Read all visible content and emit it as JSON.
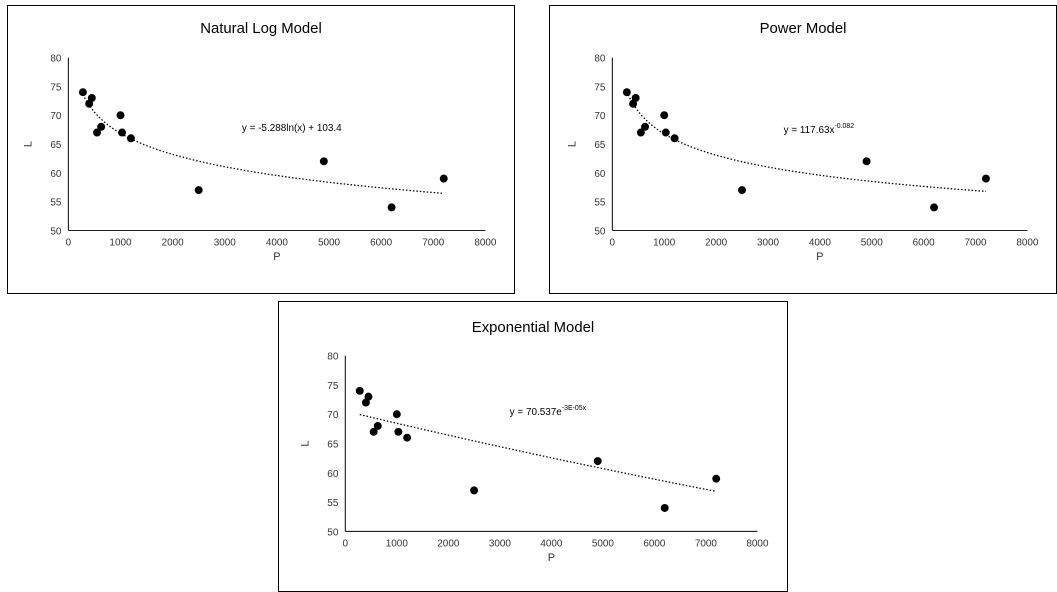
{
  "chart_data": [
    {
      "type": "scatter",
      "title": "Natural Log Model",
      "xlabel": "P",
      "ylabel": "L",
      "xlim": [
        0,
        8000
      ],
      "ylim": [
        50,
        80
      ],
      "xticks": [
        0,
        1000,
        2000,
        3000,
        4000,
        5000,
        6000,
        7000,
        8000
      ],
      "yticks": [
        50,
        55,
        60,
        65,
        70,
        75,
        80
      ],
      "grid": false,
      "points": {
        "x": [
          280,
          400,
          450,
          550,
          630,
          1000,
          1030,
          1200,
          2500,
          4900,
          6200,
          7200
        ],
        "y": [
          74,
          72,
          73,
          67,
          68,
          70,
          67,
          66,
          57,
          62,
          54,
          59
        ]
      },
      "trendline": {
        "kind": "log",
        "a": -5.288,
        "b": 103.4,
        "equation": {
          "text": "y = -5.288ln(x) + 103.4",
          "sup": ""
        }
      }
    },
    {
      "type": "scatter",
      "title": "Power Model",
      "xlabel": "P",
      "ylabel": "L",
      "xlim": [
        0,
        8000
      ],
      "ylim": [
        50,
        80
      ],
      "xticks": [
        0,
        1000,
        2000,
        3000,
        4000,
        5000,
        6000,
        7000,
        8000
      ],
      "yticks": [
        50,
        55,
        60,
        65,
        70,
        75,
        80
      ],
      "grid": false,
      "points": {
        "x": [
          280,
          400,
          450,
          550,
          630,
          1000,
          1030,
          1200,
          2500,
          4900,
          6200,
          7200
        ],
        "y": [
          74,
          72,
          73,
          67,
          68,
          70,
          67,
          66,
          57,
          62,
          54,
          59
        ]
      },
      "trendline": {
        "kind": "power",
        "a": 117.63,
        "b": -0.082,
        "equation": {
          "text": "y = 117.63x",
          "sup": "-0.082"
        }
      }
    },
    {
      "type": "scatter",
      "title": "Exponential Model",
      "xlabel": "P",
      "ylabel": "L",
      "xlim": [
        0,
        8000
      ],
      "ylim": [
        50,
        80
      ],
      "xticks": [
        0,
        1000,
        2000,
        3000,
        4000,
        5000,
        6000,
        7000,
        8000
      ],
      "yticks": [
        50,
        55,
        60,
        65,
        70,
        75,
        80
      ],
      "grid": false,
      "points": {
        "x": [
          280,
          400,
          450,
          550,
          630,
          1000,
          1030,
          1200,
          2500,
          4900,
          6200,
          7200
        ],
        "y": [
          74,
          72,
          73,
          67,
          68,
          70,
          67,
          66,
          57,
          62,
          54,
          59
        ]
      },
      "trendline": {
        "kind": "exp",
        "a": 70.537,
        "b": -3e-05,
        "equation": {
          "text": "y = 70.537e",
          "sup": "-3E-05x"
        }
      }
    }
  ]
}
